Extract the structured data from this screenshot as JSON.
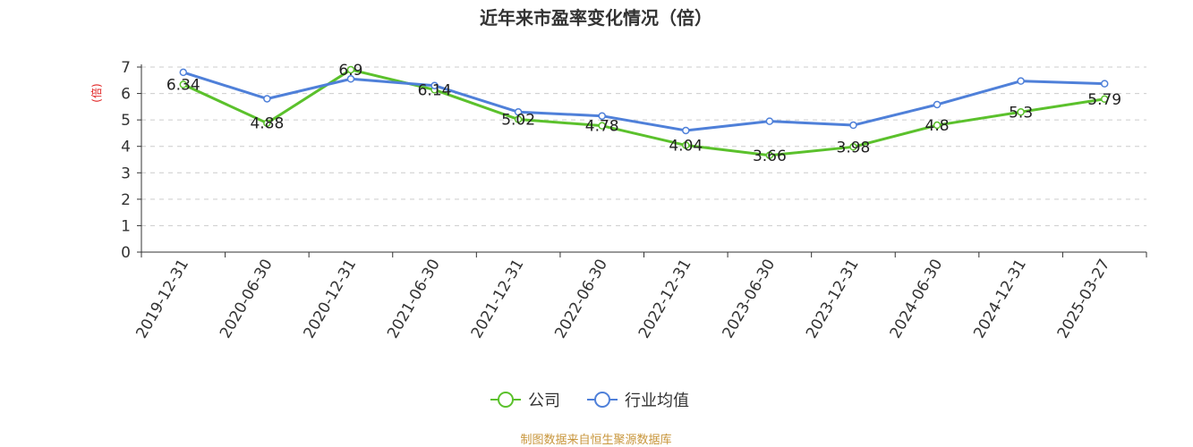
{
  "chart_data": {
    "type": "line",
    "title": "近年来市盈率变化情况（倍）",
    "ylabel": "(倍)",
    "xlabel": "",
    "categories": [
      "2019-12-31",
      "2020-06-30",
      "2020-12-31",
      "2021-06-30",
      "2021-12-31",
      "2022-06-30",
      "2022-12-31",
      "2023-06-30",
      "2023-12-31",
      "2024-06-30",
      "2024-12-31",
      "2025-03-27"
    ],
    "ylim": [
      0,
      7
    ],
    "yticks": [
      "0",
      "1",
      "2",
      "3",
      "4",
      "5",
      "6",
      "7"
    ],
    "grid": true,
    "legend_position": "bottom",
    "series": [
      {
        "name": "公司",
        "color": "#5bc12c",
        "values": [
          6.34,
          4.88,
          6.9,
          6.14,
          5.02,
          4.78,
          4.04,
          3.66,
          3.98,
          4.8,
          5.3,
          5.79
        ],
        "labels": [
          "6.34",
          "4.88",
          "6.9",
          "6.14",
          "5.02",
          "4.78",
          "4.04",
          "3.66",
          "3.98",
          "4.8",
          "5.3",
          "5.79"
        ]
      },
      {
        "name": "行业均值",
        "color": "#4f80d9",
        "values": [
          6.8,
          5.8,
          6.55,
          6.3,
          5.3,
          5.15,
          4.6,
          4.95,
          4.8,
          5.58,
          6.47,
          6.37
        ]
      }
    ]
  },
  "source_text": "制图数据来自恒生聚源数据库",
  "colors": {
    "unit_label": "#e02020",
    "source": "#c8963c",
    "axis": "#333333",
    "grid": "#cccccc"
  }
}
